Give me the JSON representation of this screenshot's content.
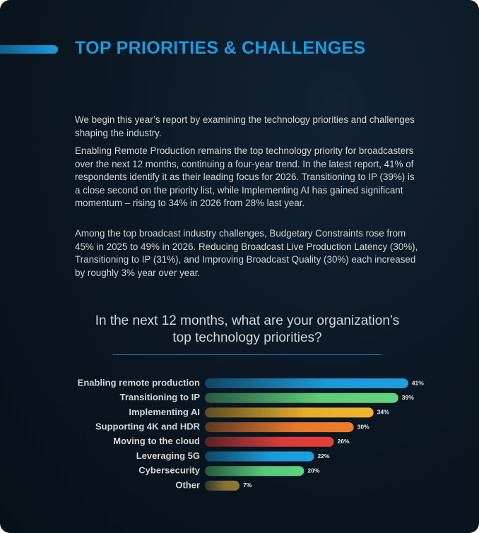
{
  "header": {
    "title": "TOP PRIORITIES & CHALLENGES"
  },
  "paragraphs": [
    "We begin this year’s report by examining the technology priorities and challenges shaping the industry.",
    "Enabling Remote Production remains the top technology priority for broadcasters over the next 12 months, continuing a four-year trend. In the latest report, 41% of respondents identify it as their leading focus for 2026. Transitioning to IP (39%) is a close second on the priority list, while Implementing AI has gained significant momentum – rising to 34% in 2026 from 28% last year.",
    "Among the top broadcast industry challenges, Budgetary Constraints rose from 45% in 2025 to 49% in 2026. Reducing Broadcast Live Production Latency (30%), Transitioning to IP (31%), and Improving Broadcast Quality (30%) each increased by roughly 3% year over year."
  ],
  "chart_data": {
    "type": "hbar",
    "title": "In the next 12 months, what are your organization’s top technology priorities?",
    "categories": [
      "Enabling remote production",
      "Transitioning to IP",
      "Implementing AI",
      "Supporting 4K and HDR",
      "Moving to the cloud",
      "Leveraging 5G",
      "Cybersecurity",
      "Other"
    ],
    "values": [
      41,
      39,
      34,
      30,
      26,
      22,
      20,
      7
    ],
    "value_labels": [
      "41%",
      "39%",
      "34%",
      "30%",
      "26%",
      "22%",
      "20%",
      "7%"
    ],
    "colors": [
      "#1e9fe0",
      "#62d57e",
      "#f2b52c",
      "#f07c2c",
      "#e53e3a",
      "#1aa2e2",
      "#5cd27f",
      "#8c7a38"
    ]
  }
}
